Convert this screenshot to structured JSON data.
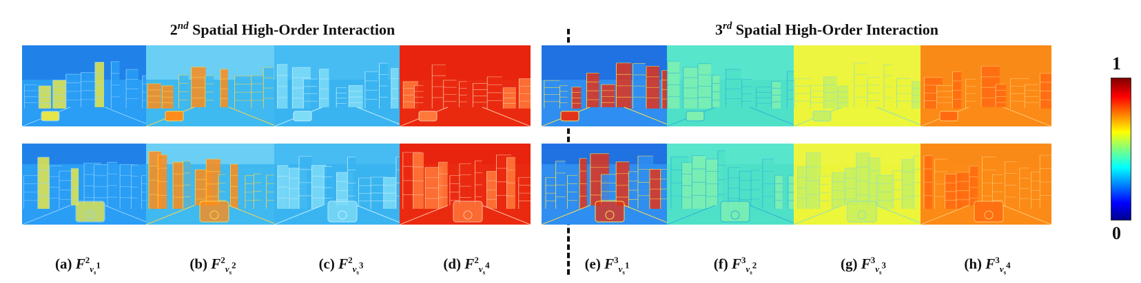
{
  "figure": {
    "groups": [
      {
        "title_base": "2",
        "title_sup": "nd",
        "title_rest": " Spatial High-Order Interaction"
      },
      {
        "title_base": "3",
        "title_sup": "rd",
        "title_rest": " Spatial High-Order Interaction"
      }
    ],
    "captions": [
      {
        "label": "(a) ",
        "order": "2",
        "index": "1"
      },
      {
        "label": "(b) ",
        "order": "2",
        "index": "2"
      },
      {
        "label": "(c) ",
        "order": "2",
        "index": "3"
      },
      {
        "label": "(d) ",
        "order": "2",
        "index": "4"
      },
      {
        "label": "(e) ",
        "order": "3",
        "index": "1"
      },
      {
        "label": "(f) ",
        "order": "3",
        "index": "2"
      },
      {
        "label": "(g) ",
        "order": "3",
        "index": "3"
      },
      {
        "label": "(h) ",
        "order": "3",
        "index": "4"
      }
    ],
    "colorbar": {
      "max_label": "1",
      "min_label": "0",
      "colormap": "jet"
    },
    "panel_colors": [
      {
        "base": "#2a9df4",
        "sky": "#1f7fe8",
        "accent": "#e6e64a",
        "edge": "#8fd3ff"
      },
      {
        "base": "#3fb9ef",
        "sky": "#6fd0f5",
        "accent": "#ff8c1a",
        "edge": "#ffd54a"
      },
      {
        "base": "#3ab4f0",
        "sky": "#48bdf3",
        "accent": "#7fdcf7",
        "edge": "#bfeeff"
      },
      {
        "base": "#ea2a10",
        "sky": "#e8240e",
        "accent": "#ff7a3a",
        "edge": "#ffc0a0"
      },
      {
        "base": "#2f8ef0",
        "sky": "#1f6fe0",
        "accent": "#e2321a",
        "edge": "#ffe14a"
      },
      {
        "base": "#4fe0c8",
        "sky": "#58e6cc",
        "accent": "#7ff0b0",
        "edge": "#2fb3d6"
      },
      {
        "base": "#ecf53a",
        "sky": "#eef541",
        "accent": "#c8f060",
        "edge": "#8fe0c0"
      },
      {
        "base": "#fb8a16",
        "sky": "#fa8a18",
        "accent": "#ff6a10",
        "edge": "#ffc870"
      }
    ]
  }
}
